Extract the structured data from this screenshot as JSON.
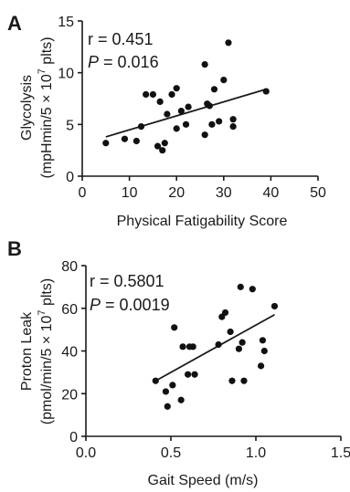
{
  "chart_data": [
    {
      "panel": "A",
      "type": "scatter",
      "xlabel": "Physical Fatigability  Score",
      "ylabel_line1": "Glycolysis",
      "ylabel_line2": "(mpHmin/5 × 10",
      "ylabel_sup": "7",
      "ylabel_tail": " plts)",
      "xlim": [
        0,
        50
      ],
      "ylim": [
        0,
        15
      ],
      "x_ticks": [
        "0",
        "10",
        "20",
        "30",
        "40",
        "50"
      ],
      "y_ticks": [
        "0",
        "5",
        "10",
        "15"
      ],
      "r_text": "r = 0.451",
      "p_label": "P",
      "p_value": " = 0.016",
      "fit_line": {
        "x": [
          5,
          39
        ],
        "y": [
          3.8,
          8.4
        ]
      },
      "points": [
        {
          "x": 5,
          "y": 3.2
        },
        {
          "x": 9,
          "y": 3.6
        },
        {
          "x": 11.5,
          "y": 3.4
        },
        {
          "x": 12.5,
          "y": 4.8
        },
        {
          "x": 13.5,
          "y": 7.9
        },
        {
          "x": 15,
          "y": 7.9
        },
        {
          "x": 16,
          "y": 2.9
        },
        {
          "x": 16.5,
          "y": 7.2
        },
        {
          "x": 17,
          "y": 2.5
        },
        {
          "x": 17.5,
          "y": 3.2
        },
        {
          "x": 18,
          "y": 6.0
        },
        {
          "x": 19,
          "y": 7.9
        },
        {
          "x": 20,
          "y": 8.5
        },
        {
          "x": 20,
          "y": 4.6
        },
        {
          "x": 21,
          "y": 6.3
        },
        {
          "x": 22,
          "y": 5.0
        },
        {
          "x": 22.5,
          "y": 6.7
        },
        {
          "x": 26,
          "y": 10.8
        },
        {
          "x": 26,
          "y": 4.0
        },
        {
          "x": 26.5,
          "y": 7.0
        },
        {
          "x": 27,
          "y": 6.8
        },
        {
          "x": 27.5,
          "y": 5.0
        },
        {
          "x": 28,
          "y": 8.4
        },
        {
          "x": 29,
          "y": 5.3
        },
        {
          "x": 30,
          "y": 9.3
        },
        {
          "x": 31,
          "y": 12.9
        },
        {
          "x": 32,
          "y": 5.5
        },
        {
          "x": 32,
          "y": 4.8
        },
        {
          "x": 39,
          "y": 8.2
        }
      ]
    },
    {
      "panel": "B",
      "type": "scatter",
      "xlabel": "Gait Speed (m/s)",
      "ylabel_line1": "Proton Leak",
      "ylabel_line2": "(pmol/min/5 × 10",
      "ylabel_sup": "7",
      "ylabel_tail": " plts)",
      "xlim": [
        0,
        1.5
      ],
      "ylim": [
        0,
        80
      ],
      "x_ticks": [
        "0.0",
        "0.5",
        "1.0",
        "1.5"
      ],
      "y_ticks": [
        "0",
        "20",
        "40",
        "60",
        "80"
      ],
      "r_text": "r = 0.5801",
      "p_label": "P",
      "p_value": " = 0.0019",
      "fit_line": {
        "x": [
          0.41,
          1.11
        ],
        "y": [
          26,
          57
        ]
      },
      "points": [
        {
          "x": 0.41,
          "y": 26
        },
        {
          "x": 0.47,
          "y": 21
        },
        {
          "x": 0.48,
          "y": 14
        },
        {
          "x": 0.51,
          "y": 24
        },
        {
          "x": 0.52,
          "y": 51
        },
        {
          "x": 0.56,
          "y": 17
        },
        {
          "x": 0.57,
          "y": 42
        },
        {
          "x": 0.6,
          "y": 29
        },
        {
          "x": 0.61,
          "y": 42
        },
        {
          "x": 0.63,
          "y": 42
        },
        {
          "x": 0.64,
          "y": 29
        },
        {
          "x": 0.78,
          "y": 43
        },
        {
          "x": 0.8,
          "y": 56
        },
        {
          "x": 0.82,
          "y": 58
        },
        {
          "x": 0.85,
          "y": 49
        },
        {
          "x": 0.86,
          "y": 26
        },
        {
          "x": 0.9,
          "y": 41
        },
        {
          "x": 0.91,
          "y": 70
        },
        {
          "x": 0.92,
          "y": 44
        },
        {
          "x": 0.93,
          "y": 26
        },
        {
          "x": 0.98,
          "y": 69
        },
        {
          "x": 1.03,
          "y": 33
        },
        {
          "x": 1.04,
          "y": 45
        },
        {
          "x": 1.05,
          "y": 40
        },
        {
          "x": 1.11,
          "y": 61
        }
      ]
    }
  ]
}
